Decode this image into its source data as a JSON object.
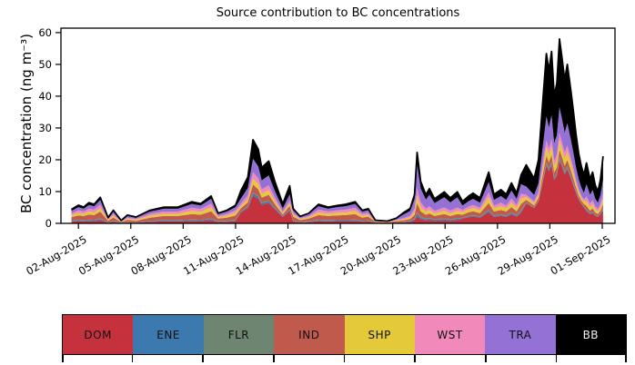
{
  "chart_data": {
    "type": "area",
    "stacked": true,
    "title": "Source contribution to BC concentrations",
    "xlabel": "",
    "ylabel": "BC concentration (ng m⁻³)",
    "x_unit": "days since 01-Aug-2025 00:00",
    "xlim": [
      0,
      31.73
    ],
    "ylim": [
      0,
      61.4
    ],
    "grid": false,
    "y_ticks": [
      0,
      10,
      20,
      30,
      40,
      50,
      60
    ],
    "x_ticks": [
      {
        "t": 1,
        "label": "02-Aug-2025"
      },
      {
        "t": 4,
        "label": "05-Aug-2025"
      },
      {
        "t": 7,
        "label": "08-Aug-2025"
      },
      {
        "t": 10,
        "label": "11-Aug-2025"
      },
      {
        "t": 13,
        "label": "14-Aug-2025"
      },
      {
        "t": 16,
        "label": "17-Aug-2025"
      },
      {
        "t": 19,
        "label": "20-Aug-2025"
      },
      {
        "t": 22,
        "label": "23-Aug-2025"
      },
      {
        "t": 25,
        "label": "26-Aug-2025"
      },
      {
        "t": 28,
        "label": "29-Aug-2025"
      },
      {
        "t": 31,
        "label": "01-Sep-2025"
      }
    ],
    "x": [
      0.6,
      1.0,
      1.3,
      1.6,
      1.9,
      2.25,
      2.7,
      3.0,
      3.45,
      3.8,
      4.3,
      5.1,
      5.9,
      6.7,
      7.5,
      8.0,
      8.6,
      9.0,
      9.5,
      10.0,
      10.3,
      10.7,
      11.0,
      11.3,
      11.5,
      11.9,
      12.25,
      12.7,
      13.1,
      13.3,
      13.7,
      14.2,
      14.75,
      15.3,
      15.8,
      16.3,
      16.85,
      17.25,
      17.6,
      18.0,
      18.7,
      19.2,
      19.6,
      20.0,
      20.25,
      20.4,
      20.6,
      20.9,
      21.1,
      21.4,
      21.95,
      22.3,
      22.7,
      23.0,
      23.35,
      23.6,
      24.0,
      24.5,
      24.8,
      25.2,
      25.5,
      25.8,
      26.1,
      26.35,
      26.65,
      27.1,
      27.35,
      27.55,
      27.8,
      27.95,
      28.1,
      28.25,
      28.4,
      28.55,
      28.7,
      28.85,
      29.0,
      29.2,
      29.35,
      29.5,
      29.65,
      29.8,
      29.95,
      30.1,
      30.3,
      30.45,
      30.6,
      30.75,
      30.9,
      31.05
    ],
    "series": [
      {
        "name": "DOM",
        "color": "#c5323e",
        "values": [
          0.5,
          0.7,
          0.6,
          0.8,
          0.7,
          1.0,
          0.2,
          0.5,
          0.1,
          0.3,
          0.2,
          0.5,
          0.6,
          0.6,
          0.8,
          0.7,
          1.0,
          0.4,
          0.5,
          0.7,
          3.4,
          4.8,
          8.7,
          7.7,
          5.8,
          6.4,
          4.4,
          2.0,
          3.9,
          0.6,
          0.3,
          0.4,
          0.7,
          0.6,
          0.7,
          0.7,
          0.8,
          0.5,
          0.6,
          0.1,
          0.1,
          0.2,
          0.3,
          0.5,
          0.9,
          2.2,
          1.3,
          0.9,
          1.1,
          0.8,
          1.0,
          0.8,
          1.0,
          1.5,
          1.9,
          2.1,
          1.8,
          3.5,
          2.0,
          2.3,
          2.0,
          2.8,
          2.1,
          3.3,
          6.3,
          4.8,
          6.8,
          11.9,
          18.2,
          16.3,
          18.4,
          13.6,
          15.0,
          19.7,
          17.7,
          15.3,
          17.0,
          14.3,
          11.9,
          9.5,
          7.5,
          6.1,
          5.1,
          3.8,
          2.8,
          3.2,
          2.4,
          2.0,
          2.8,
          4.2
        ]
      },
      {
        "name": "ENE",
        "color": "#3c79ae",
        "values": [
          0.2,
          0.3,
          0.3,
          0.3,
          0.3,
          0.4,
          0.1,
          0.2,
          0.1,
          0.1,
          0.1,
          0.2,
          0.3,
          0.3,
          0.3,
          0.3,
          0.4,
          0.2,
          0.2,
          0.3,
          0.3,
          0.4,
          0.8,
          0.7,
          0.5,
          0.6,
          0.4,
          0.2,
          0.4,
          0.2,
          0.1,
          0.2,
          0.3,
          0.3,
          0.3,
          0.3,
          0.3,
          0.2,
          0.2,
          0.1,
          0.0,
          0.1,
          0.1,
          0.2,
          0.4,
          0.9,
          0.5,
          0.4,
          0.4,
          0.3,
          0.4,
          0.3,
          0.4,
          0.2,
          0.3,
          0.3,
          0.2,
          0.5,
          0.3,
          0.3,
          0.3,
          0.4,
          0.3,
          0.5,
          0.2,
          0.1,
          0.2,
          0.4,
          0.5,
          0.5,
          0.5,
          0.4,
          0.4,
          0.6,
          0.5,
          0.5,
          0.5,
          0.4,
          0.4,
          0.3,
          0.2,
          0.2,
          0.2,
          0.4,
          0.3,
          0.3,
          0.2,
          0.2,
          0.3,
          0.4
        ]
      },
      {
        "name": "FLR",
        "color": "#6e8572",
        "values": [
          0.1,
          0.1,
          0.1,
          0.1,
          0.1,
          0.2,
          0.0,
          0.1,
          0.0,
          0.1,
          0.0,
          0.1,
          0.1,
          0.1,
          0.1,
          0.1,
          0.2,
          0.1,
          0.1,
          0.1,
          0.1,
          0.1,
          0.3,
          0.2,
          0.2,
          0.2,
          0.1,
          0.1,
          0.1,
          0.1,
          0.0,
          0.1,
          0.1,
          0.1,
          0.1,
          0.1,
          0.1,
          0.1,
          0.1,
          0.0,
          0.0,
          0.0,
          0.1,
          0.1,
          0.2,
          0.4,
          0.3,
          0.2,
          0.2,
          0.2,
          0.2,
          0.2,
          0.2,
          0.1,
          0.2,
          0.2,
          0.2,
          0.3,
          0.2,
          0.2,
          0.2,
          0.3,
          0.2,
          0.3,
          0.2,
          0.1,
          0.2,
          0.4,
          0.5,
          0.5,
          0.5,
          0.4,
          0.4,
          0.6,
          0.5,
          0.5,
          0.5,
          0.4,
          0.4,
          0.3,
          0.2,
          0.2,
          0.2,
          0.2,
          0.1,
          0.2,
          0.1,
          0.1,
          0.1,
          0.2
        ]
      },
      {
        "name": "IND",
        "color": "#c05a4c",
        "values": [
          1.1,
          1.4,
          1.3,
          1.6,
          1.5,
          2.1,
          0.5,
          1.0,
          0.2,
          0.6,
          0.5,
          1.0,
          1.3,
          1.3,
          1.7,
          1.6,
          2.2,
          0.8,
          1.0,
          1.4,
          0.9,
          1.3,
          2.4,
          2.1,
          1.6,
          1.8,
          1.2,
          0.5,
          1.1,
          1.2,
          0.6,
          0.8,
          1.5,
          1.3,
          1.4,
          1.5,
          1.7,
          1.0,
          1.2,
          0.3,
          0.2,
          0.4,
          0.4,
          0.6,
          1.2,
          2.9,
          1.7,
          1.2,
          1.4,
          1.0,
          1.3,
          1.0,
          1.3,
          0.9,
          1.1,
          1.2,
          1.0,
          2.1,
          1.2,
          1.4,
          1.2,
          1.6,
          1.2,
          2.0,
          0.7,
          0.6,
          0.8,
          1.4,
          2.1,
          1.9,
          2.2,
          1.6,
          1.8,
          2.3,
          2.1,
          1.8,
          2.0,
          1.7,
          1.4,
          1.1,
          0.9,
          0.7,
          0.6,
          1.1,
          0.8,
          1.0,
          0.7,
          0.6,
          0.8,
          1.3
        ]
      },
      {
        "name": "SHP",
        "color": "#e4ca39",
        "values": [
          0.6,
          0.8,
          0.7,
          0.9,
          0.8,
          1.1,
          0.3,
          0.6,
          0.1,
          0.4,
          0.3,
          0.6,
          0.7,
          0.7,
          1.0,
          0.9,
          1.2,
          0.4,
          0.6,
          0.8,
          0.7,
          1.0,
          1.8,
          1.6,
          1.2,
          1.4,
          0.9,
          0.4,
          0.8,
          0.6,
          0.3,
          0.4,
          0.8,
          0.7,
          0.8,
          0.8,
          1.0,
          0.6,
          0.6,
          0.1,
          0.1,
          0.2,
          0.3,
          0.5,
          0.9,
          2.2,
          1.3,
          0.9,
          1.1,
          0.8,
          1.0,
          0.8,
          1.0,
          0.8,
          0.9,
          1.0,
          0.9,
          1.8,
          1.0,
          1.2,
          1.0,
          1.4,
          1.0,
          1.7,
          0.9,
          0.7,
          1.0,
          1.8,
          2.7,
          2.4,
          2.7,
          2.0,
          2.2,
          2.9,
          2.6,
          2.3,
          2.5,
          2.1,
          1.8,
          1.4,
          1.1,
          0.9,
          0.8,
          1.5,
          1.1,
          1.3,
          1.0,
          0.8,
          1.1,
          1.7
        ]
      },
      {
        "name": "WST",
        "color": "#f289bb",
        "values": [
          0.6,
          0.8,
          0.7,
          0.9,
          0.9,
          1.1,
          0.2,
          0.6,
          0.1,
          0.3,
          0.3,
          0.6,
          0.7,
          0.7,
          1.0,
          0.9,
          1.2,
          0.4,
          0.6,
          0.8,
          0.8,
          1.2,
          2.1,
          1.9,
          1.4,
          1.6,
          1.1,
          0.5,
          0.9,
          0.6,
          0.3,
          0.4,
          0.9,
          0.7,
          0.8,
          0.9,
          1.0,
          0.6,
          0.6,
          0.1,
          0.1,
          0.2,
          0.4,
          0.5,
          1.0,
          2.5,
          1.5,
          1.0,
          1.2,
          0.8,
          1.1,
          0.9,
          1.1,
          0.7,
          0.9,
          1.0,
          0.8,
          1.6,
          0.9,
          1.1,
          0.9,
          1.3,
          1.0,
          1.5,
          0.7,
          0.6,
          0.8,
          1.4,
          2.1,
          1.9,
          2.2,
          1.6,
          1.8,
          2.3,
          2.1,
          1.8,
          2.0,
          1.7,
          1.4,
          1.1,
          0.9,
          0.7,
          0.6,
          1.5,
          1.1,
          1.3,
          1.0,
          0.8,
          1.1,
          1.7
        ]
      },
      {
        "name": "TRA",
        "color": "#9471d5",
        "values": [
          0.8,
          1.0,
          0.9,
          1.2,
          1.1,
          1.5,
          0.3,
          0.7,
          0.2,
          0.5,
          0.4,
          0.7,
          0.9,
          0.9,
          1.2,
          1.1,
          1.5,
          0.6,
          0.7,
          1.0,
          1.6,
          2.3,
          4.2,
          3.7,
          2.8,
          3.1,
          2.1,
          1.0,
          1.9,
          0.8,
          0.4,
          0.6,
          1.1,
          0.9,
          1.0,
          1.1,
          1.2,
          0.7,
          0.8,
          0.2,
          0.1,
          0.3,
          1.1,
          1.5,
          3.0,
          7.4,
          4.4,
          2.9,
          3.6,
          2.5,
          3.2,
          2.6,
          3.2,
          1.4,
          1.7,
          1.9,
          1.6,
          3.2,
          1.8,
          2.1,
          1.8,
          2.5,
          1.9,
          3.0,
          2.6,
          2.0,
          2.8,
          4.9,
          7.5,
          6.7,
          7.6,
          5.6,
          6.2,
          8.1,
          7.3,
          6.3,
          7.0,
          5.9,
          4.9,
          3.9,
          3.1,
          2.5,
          2.1,
          3.8,
          2.8,
          3.2,
          2.4,
          2.0,
          2.8,
          4.2
        ]
      },
      {
        "name": "BB",
        "color": "#000000",
        "values": [
          0.5,
          0.6,
          0.5,
          0.7,
          0.6,
          0.8,
          0.2,
          0.4,
          0.1,
          0.3,
          0.2,
          0.4,
          0.5,
          0.5,
          0.7,
          0.6,
          0.9,
          0.3,
          0.4,
          0.6,
          2.4,
          3.4,
          6.0,
          5.4,
          4.0,
          4.5,
          3.0,
          1.4,
          2.7,
          0.5,
          0.2,
          0.3,
          0.6,
          0.5,
          0.5,
          0.6,
          0.7,
          0.4,
          0.5,
          0.1,
          0.1,
          0.2,
          0.6,
          0.8,
          1.5,
          3.8,
          2.2,
          1.5,
          1.9,
          1.3,
          1.7,
          1.4,
          1.7,
          1.3,
          1.6,
          1.8,
          1.5,
          3.1,
          1.7,
          2.0,
          1.7,
          2.4,
          1.8,
          2.9,
          6.8,
          5.2,
          7.4,
          13.0,
          19.8,
          17.8,
          20.0,
          14.8,
          16.3,
          21.5,
          19.2,
          16.7,
          18.5,
          15.5,
          13.0,
          10.4,
          8.1,
          6.7,
          5.6,
          6.7,
          4.9,
          5.6,
          4.2,
          3.5,
          4.9,
          7.4
        ]
      }
    ]
  },
  "legend": {
    "items": [
      {
        "label": "DOM",
        "color": "#c5323e",
        "label_color": "#111111"
      },
      {
        "label": "ENE",
        "color": "#3c79ae",
        "label_color": "#111111"
      },
      {
        "label": "FLR",
        "color": "#6e8572",
        "label_color": "#111111"
      },
      {
        "label": "IND",
        "color": "#c05a4c",
        "label_color": "#111111"
      },
      {
        "label": "SHP",
        "color": "#e4ca39",
        "label_color": "#111111"
      },
      {
        "label": "WST",
        "color": "#f289bb",
        "label_color": "#111111"
      },
      {
        "label": "TRA",
        "color": "#9471d5",
        "label_color": "#111111"
      },
      {
        "label": "BB",
        "color": "#000000",
        "label_color": "#f5f5f5"
      }
    ]
  }
}
